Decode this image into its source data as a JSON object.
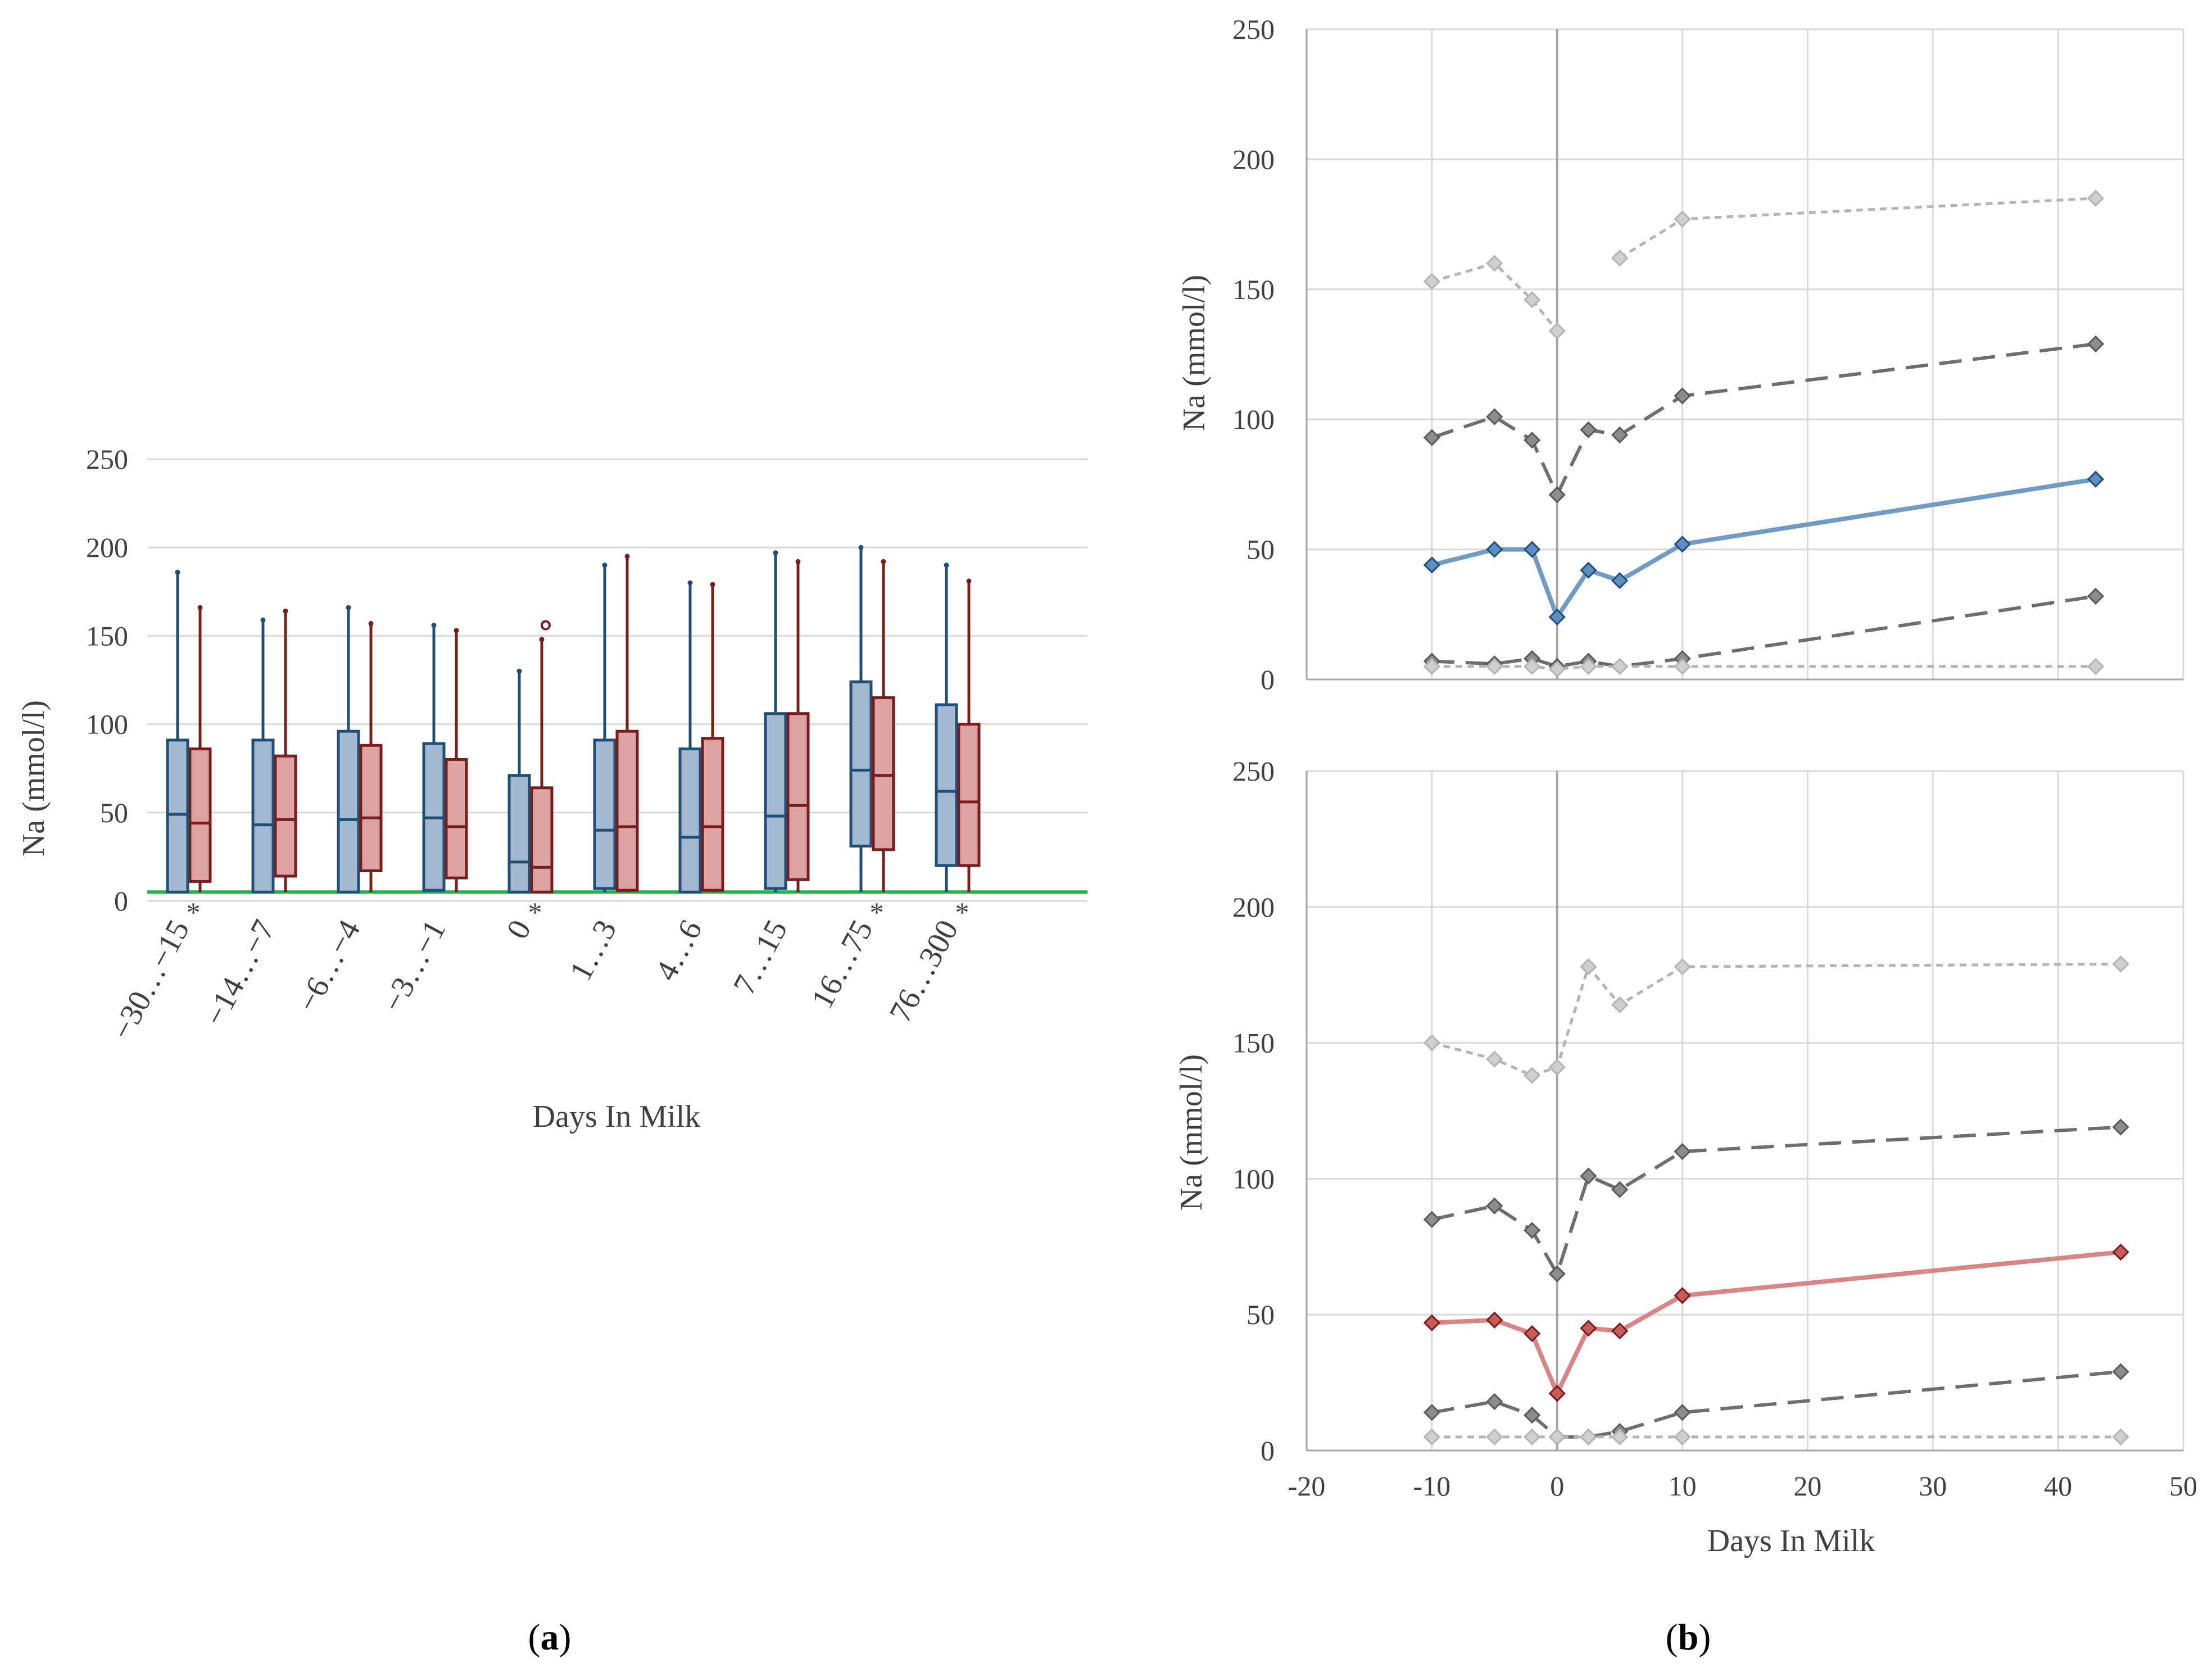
{
  "panel_a": {
    "label_open": "(",
    "label_letter": "a",
    "label_close": ")",
    "chart_data": {
      "type": "box",
      "title": "",
      "xlabel": "Days In Milk",
      "ylabel": "Na (mmol/l)",
      "ylim": [
        0,
        250
      ],
      "yticks": [
        "0",
        "50",
        "100",
        "150",
        "200",
        "250"
      ],
      "grid": true,
      "reference_line": {
        "value": 5,
        "color": "#22b04a"
      },
      "categories": [
        "−30…−15",
        "−14…−7",
        "−6…−4",
        "−3…−1",
        "0",
        "1…3",
        "4…6",
        "7…15",
        "16…75",
        "76…300"
      ],
      "significant_marker": "*",
      "significant": [
        true,
        false,
        false,
        false,
        true,
        false,
        false,
        false,
        true,
        true
      ],
      "series": [
        {
          "color": "#1f4e79",
          "fill": "#a3b9d0",
          "boxes": [
            {
              "min": 5,
              "q1": 5,
              "median": 49,
              "q3": 91,
              "max": 186
            },
            {
              "min": 5,
              "q1": 5,
              "median": 43,
              "q3": 91,
              "max": 159
            },
            {
              "min": 5,
              "q1": 5,
              "median": 46,
              "q3": 96,
              "max": 166
            },
            {
              "min": 5,
              "q1": 6,
              "median": 47,
              "q3": 89,
              "max": 156
            },
            {
              "min": 5,
              "q1": 5,
              "median": 22,
              "q3": 71,
              "max": 130
            },
            {
              "min": 5,
              "q1": 7,
              "median": 40,
              "q3": 91,
              "max": 190
            },
            {
              "min": 5,
              "q1": 5,
              "median": 36,
              "q3": 86,
              "max": 180
            },
            {
              "min": 5,
              "q1": 7,
              "median": 48,
              "q3": 106,
              "max": 197
            },
            {
              "min": 5,
              "q1": 31,
              "median": 74,
              "q3": 124,
              "max": 200
            },
            {
              "min": 5,
              "q1": 20,
              "median": 62,
              "q3": 111,
              "max": 190
            }
          ]
        },
        {
          "color": "#7b1c1c",
          "fill": "#dca3a3",
          "boxes": [
            {
              "min": 5,
              "q1": 11,
              "median": 44,
              "q3": 86,
              "max": 166
            },
            {
              "min": 5,
              "q1": 14,
              "median": 46,
              "q3": 82,
              "max": 164
            },
            {
              "min": 5,
              "q1": 17,
              "median": 47,
              "q3": 88,
              "max": 157
            },
            {
              "min": 5,
              "q1": 13,
              "median": 42,
              "q3": 80,
              "max": 153
            },
            {
              "min": 5,
              "q1": 5,
              "median": 19,
              "q3": 64,
              "max": 148,
              "outlier": 156
            },
            {
              "min": 5,
              "q1": 6,
              "median": 42,
              "q3": 96,
              "max": 195
            },
            {
              "min": 5,
              "q1": 6,
              "median": 42,
              "q3": 92,
              "max": 179
            },
            {
              "min": 5,
              "q1": 12,
              "median": 54,
              "q3": 106,
              "max": 192
            },
            {
              "min": 5,
              "q1": 29,
              "median": 71,
              "q3": 115,
              "max": 192
            },
            {
              "min": 5,
              "q1": 20,
              "median": 56,
              "q3": 100,
              "max": 181
            }
          ]
        }
      ]
    }
  },
  "panel_b": {
    "label_open": "(",
    "label_letter": "b",
    "label_close": ")",
    "chart_data": [
      {
        "type": "line",
        "ylabel": "Na (mmol/l)",
        "xlabel": "",
        "xlim": [
          -20,
          50
        ],
        "ylim": [
          0,
          250
        ],
        "yticks": [
          "0",
          "50",
          "100",
          "150",
          "200",
          "250"
        ],
        "grid": true,
        "series": [
          {
            "style": "dotted-light",
            "color": "#b4b4b4",
            "segments": [
              {
                "x": [
                  -10,
                  -5,
                  -2,
                  0
                ],
                "y": [
                  153,
                  160,
                  146,
                  134
                ]
              },
              {
                "x": [
                  5,
                  10,
                  43
                ],
                "y": [
                  162,
                  177,
                  185
                ]
              }
            ]
          },
          {
            "style": "dashed-dark",
            "color": "#6e6e6e",
            "segments": [
              {
                "x": [
                  -10,
                  -5,
                  -2,
                  0,
                  2.5,
                  5,
                  10,
                  43
                ],
                "y": [
                  93,
                  101,
                  92,
                  71,
                  96,
                  94,
                  109,
                  129
                ]
              }
            ]
          },
          {
            "style": "solid",
            "color": "#6f9bc4",
            "segments": [
              {
                "x": [
                  -10,
                  -5,
                  -2,
                  0,
                  2.5,
                  5,
                  10,
                  43
                ],
                "y": [
                  44,
                  50,
                  50,
                  24,
                  42,
                  38,
                  52,
                  77
                ]
              }
            ]
          },
          {
            "style": "dashed-dark",
            "color": "#6e6e6e",
            "segments": [
              {
                "x": [
                  -10,
                  -5,
                  -2,
                  0,
                  2.5,
                  5,
                  10,
                  43
                ],
                "y": [
                  7,
                  6,
                  8,
                  5,
                  7,
                  5,
                  8,
                  32
                ]
              }
            ]
          },
          {
            "style": "dotted-light",
            "color": "#b4b4b4",
            "segments": [
              {
                "x": [
                  -10,
                  -5,
                  -2,
                  0,
                  2.5,
                  5,
                  10,
                  43
                ],
                "y": [
                  5,
                  5,
                  5,
                  4,
                  5,
                  5,
                  5,
                  5
                ]
              }
            ]
          }
        ]
      },
      {
        "type": "line",
        "ylabel": "Na (mmol/l)",
        "xlabel": "Days In Milk",
        "xlim": [
          -20,
          50
        ],
        "ylim": [
          0,
          250
        ],
        "yticks": [
          "0",
          "50",
          "100",
          "150",
          "200",
          "250"
        ],
        "xticks": [
          "-20",
          "-10",
          "0",
          "10",
          "20",
          "30",
          "40",
          "50"
        ],
        "grid": true,
        "series": [
          {
            "style": "dotted-light",
            "color": "#b4b4b4",
            "segments": [
              {
                "x": [
                  -10,
                  -5,
                  -2,
                  0,
                  2.5,
                  5,
                  10,
                  45
                ],
                "y": [
                  150,
                  144,
                  138,
                  141,
                  178,
                  164,
                  178,
                  179
                ]
              }
            ]
          },
          {
            "style": "dashed-dark",
            "color": "#6e6e6e",
            "segments": [
              {
                "x": [
                  -10,
                  -5,
                  -2,
                  0,
                  2.5,
                  5,
                  10,
                  45
                ],
                "y": [
                  85,
                  90,
                  81,
                  65,
                  101,
                  96,
                  110,
                  119
                ]
              }
            ]
          },
          {
            "style": "solid",
            "color": "#d98585",
            "segments": [
              {
                "x": [
                  -10,
                  -5,
                  -2,
                  0,
                  2.5,
                  5,
                  10,
                  45
                ],
                "y": [
                  47,
                  48,
                  43,
                  21,
                  45,
                  44,
                  57,
                  73
                ]
              }
            ]
          },
          {
            "style": "dashed-dark",
            "color": "#6e6e6e",
            "segments": [
              {
                "x": [
                  -10,
                  -5,
                  -2,
                  0,
                  2.5,
                  5,
                  10,
                  45
                ],
                "y": [
                  14,
                  18,
                  13,
                  5,
                  5,
                  7,
                  14,
                  29
                ]
              }
            ]
          },
          {
            "style": "dotted-light",
            "color": "#b4b4b4",
            "segments": [
              {
                "x": [
                  -10,
                  -5,
                  -2,
                  0,
                  2.5,
                  5,
                  10,
                  45
                ],
                "y": [
                  5,
                  5,
                  5,
                  5,
                  5,
                  5,
                  5,
                  5
                ]
              }
            ]
          }
        ]
      }
    ]
  }
}
